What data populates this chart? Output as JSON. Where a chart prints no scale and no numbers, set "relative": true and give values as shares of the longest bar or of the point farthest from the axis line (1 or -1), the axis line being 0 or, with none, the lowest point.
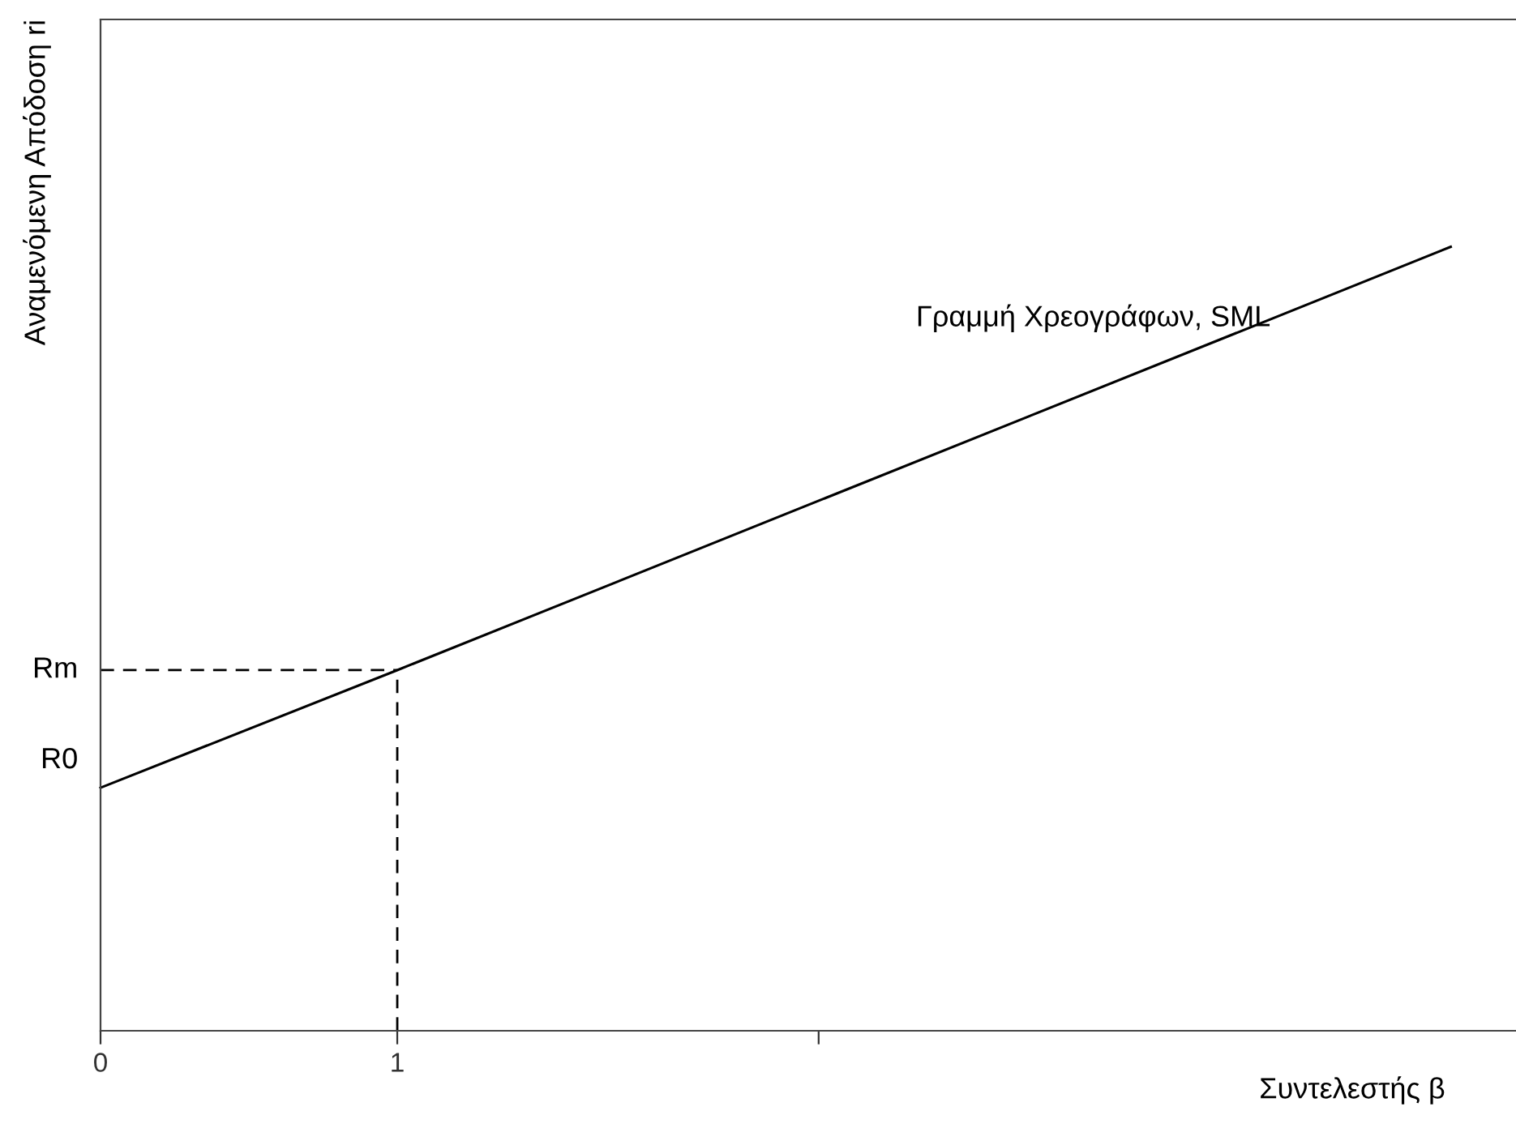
{
  "chart_data": {
    "type": "line",
    "relative": true,
    "xlabel": "Συντελεστής β",
    "ylabel": "Αναμενόμενη Απόδοση ri",
    "xlim": [
      0,
      4.77
    ],
    "xticks": [
      0,
      1,
      {
        "value": 2.42,
        "label": null
      }
    ],
    "series": [
      {
        "name": "Γραμμή Χρεογράφων, SML",
        "color": "#000000",
        "x": [
          0,
          1,
          4.55
        ],
        "values": [
          0.31,
          0.46,
          1
        ]
      }
    ],
    "ref_lines": [
      {
        "axis": "y",
        "value": 0.46,
        "label": "Rm",
        "line_style": "dashed",
        "color": "#000000"
      },
      {
        "axis": "x",
        "value": 1,
        "label": null,
        "line_style": "dashed",
        "color": "#000000"
      }
    ],
    "annotations": [
      {
        "text": "R0",
        "x": 0,
        "y": 0.31
      }
    ],
    "grid": false,
    "legend": false,
    "marker": "none",
    "line_style": "solid"
  }
}
